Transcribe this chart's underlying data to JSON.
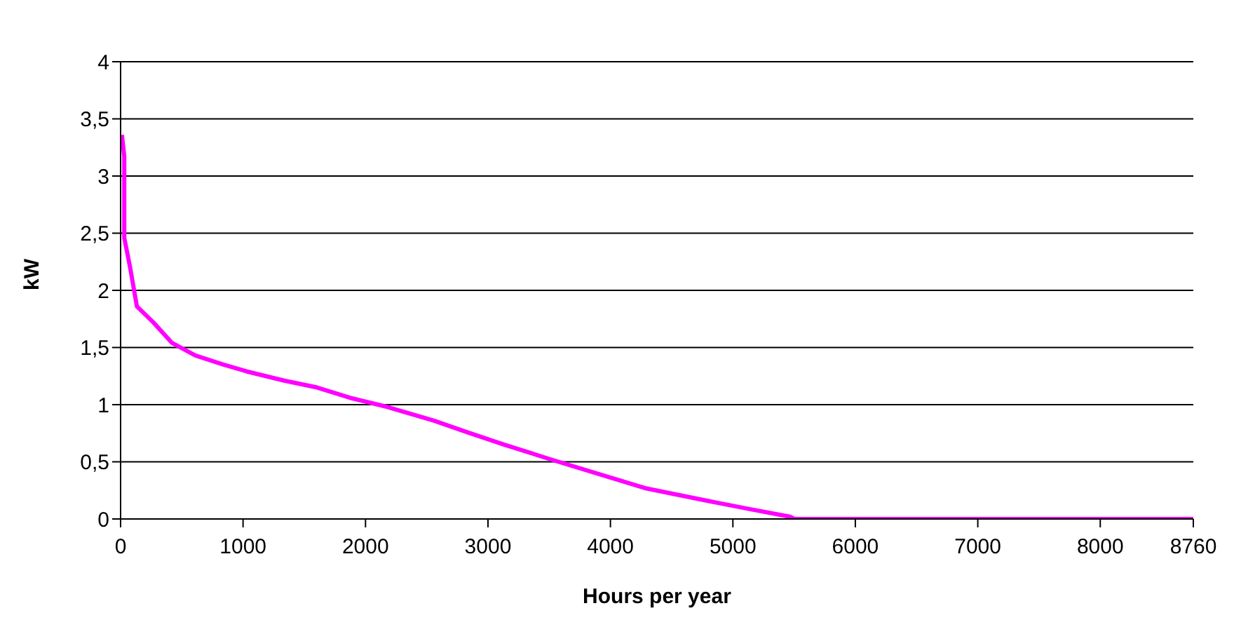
{
  "chart_data": {
    "type": "line",
    "xlabel": "Hours per year",
    "ylabel": "kW",
    "x": [
      11,
      30,
      30,
      76,
      133,
      267,
      420,
      611,
      840,
      1032,
      1337,
      1605,
      1873,
      2179,
      2560,
      2827,
      3134,
      3516,
      3975,
      4281,
      4740,
      5122,
      5466,
      5505,
      8760
    ],
    "series": [
      {
        "color": "#ff00ff",
        "values": [
          3.36,
          3.17,
          2.46,
          2.21,
          1.86,
          1.72,
          1.54,
          1.43,
          1.35,
          1.29,
          1.21,
          1.15,
          1.06,
          0.98,
          0.86,
          0.76,
          0.65,
          0.52,
          0.37,
          0.27,
          0.17,
          0.09,
          0.02,
          0,
          0
        ]
      }
    ],
    "xlim": [
      0,
      8760
    ],
    "xticks": [
      0,
      1000,
      2000,
      3000,
      4000,
      5000,
      6000,
      7000,
      8000,
      8760
    ],
    "ylim": [
      0,
      4
    ],
    "yticks": [
      0,
      {
        "value": 0.5,
        "label": "0,5"
      },
      1,
      {
        "value": 1.5,
        "label": "1,5"
      },
      2,
      {
        "value": 2.5,
        "label": "2,5"
      },
      3,
      {
        "value": 3.5,
        "label": "3,5"
      },
      4
    ],
    "grid": "y",
    "marker": "none",
    "line_style": "solid",
    "legend": false
  }
}
